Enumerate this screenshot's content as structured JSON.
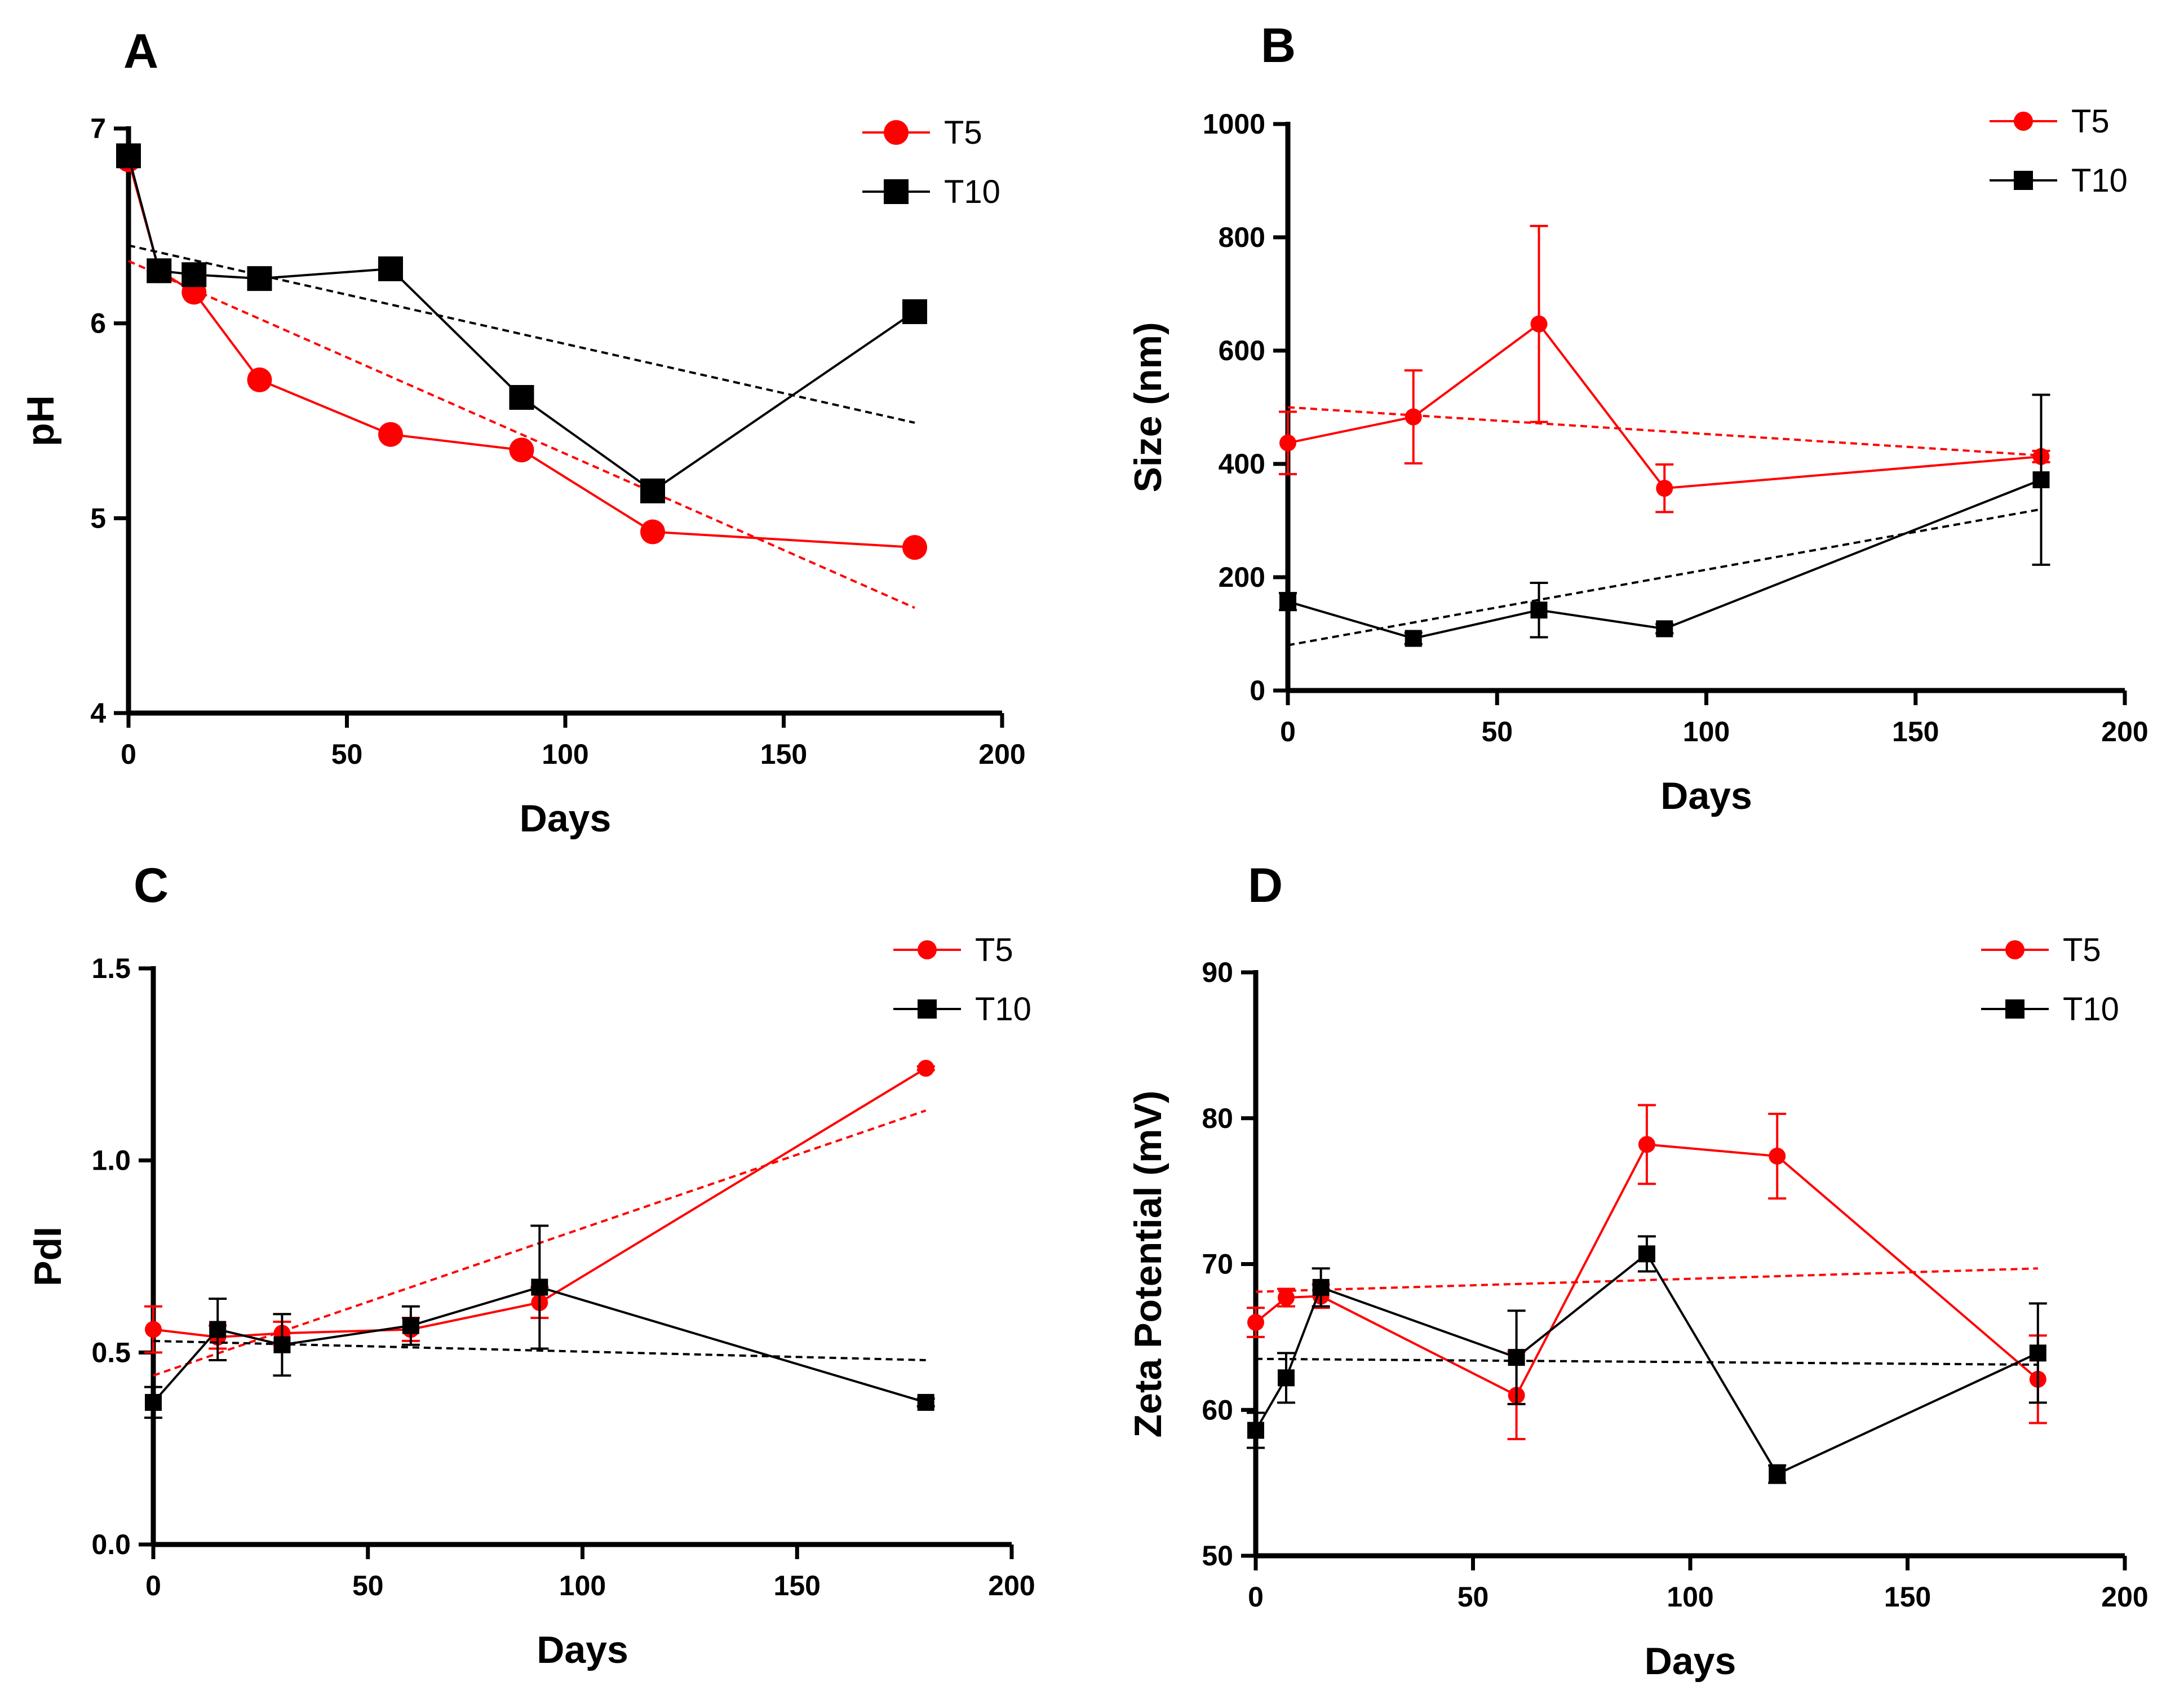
{
  "chart_data": [
    {
      "panel": "A",
      "type": "line",
      "title": "",
      "xlabel": "Days",
      "ylabel": "pH",
      "xlim": [
        0,
        200
      ],
      "ylim": [
        4,
        7
      ],
      "xticks": [
        0,
        50,
        100,
        150,
        200
      ],
      "yticks": [
        4,
        5,
        6,
        7
      ],
      "xtick_labels": [
        "0",
        "50",
        "100",
        "150",
        "200"
      ],
      "ytick_labels": [
        "4",
        "5",
        "6",
        "7"
      ],
      "marker_scale": "large",
      "legend_position": "top-right",
      "series": [
        {
          "name": "T5",
          "color": "#ff0000",
          "marker": "circle",
          "x": [
            0,
            7,
            15,
            30,
            60,
            90,
            120,
            180
          ],
          "y": [
            6.84,
            6.27,
            6.16,
            5.71,
            5.43,
            5.35,
            4.93,
            4.85
          ],
          "trend": [
            [
              0,
              6.32
            ],
            [
              180,
              4.54
            ]
          ]
        },
        {
          "name": "T10",
          "color": "#000000",
          "marker": "square",
          "x": [
            0,
            7,
            15,
            30,
            60,
            90,
            120,
            180
          ],
          "y": [
            6.86,
            6.27,
            6.25,
            6.23,
            6.28,
            5.62,
            5.14,
            6.06
          ],
          "trend": [
            [
              0,
              6.4
            ],
            [
              180,
              5.49
            ]
          ]
        }
      ]
    },
    {
      "panel": "B",
      "type": "line",
      "title": "",
      "xlabel": "Days",
      "ylabel": "Size (nm)",
      "xlim": [
        0,
        200
      ],
      "ylim": [
        0,
        1000
      ],
      "xticks": [
        0,
        50,
        100,
        150,
        200
      ],
      "yticks": [
        0,
        200,
        400,
        600,
        800,
        1000
      ],
      "xtick_labels": [
        "0",
        "50",
        "100",
        "150",
        "200"
      ],
      "ytick_labels": [
        "0",
        "200",
        "400",
        "600",
        "800",
        "1000"
      ],
      "marker_scale": "small",
      "legend_position": "top-right",
      "series": [
        {
          "name": "T5",
          "color": "#ff0000",
          "marker": "circle",
          "x": [
            0,
            30,
            60,
            90,
            180
          ],
          "y": [
            437,
            483,
            647,
            357,
            413
          ],
          "err": [
            55,
            82,
            173,
            42,
            10
          ],
          "trend": [
            [
              0,
              500
            ],
            [
              180,
              415
            ]
          ]
        },
        {
          "name": "T10",
          "color": "#000000",
          "marker": "square",
          "x": [
            0,
            30,
            60,
            90,
            180
          ],
          "y": [
            157,
            92,
            142,
            109,
            372
          ],
          "err": [
            15,
            10,
            48,
            8,
            150
          ],
          "trend": [
            [
              0,
              80
            ],
            [
              180,
              320
            ]
          ]
        }
      ]
    },
    {
      "panel": "C",
      "type": "line",
      "title": "",
      "xlabel": "Days",
      "ylabel": "PdI",
      "xlim": [
        0,
        200
      ],
      "ylim": [
        0.0,
        1.5
      ],
      "xticks": [
        0,
        50,
        100,
        150,
        200
      ],
      "yticks": [
        0.0,
        0.5,
        1.0,
        1.5
      ],
      "xtick_labels": [
        "0",
        "50",
        "100",
        "150",
        "200"
      ],
      "ytick_labels": [
        "0.0",
        "0.5",
        "1.0",
        "1.5"
      ],
      "marker_scale": "small",
      "legend_position": "top-right",
      "series": [
        {
          "name": "T5",
          "color": "#ff0000",
          "marker": "circle",
          "x": [
            0,
            15,
            30,
            60,
            90,
            180
          ],
          "y": [
            0.56,
            0.54,
            0.55,
            0.56,
            0.63,
            1.24
          ],
          "err": [
            0.06,
            0.03,
            0.03,
            0.03,
            0.04,
            0.005
          ],
          "trend": [
            [
              0,
              0.44
            ],
            [
              180,
              1.13
            ]
          ]
        },
        {
          "name": "T10",
          "color": "#000000",
          "marker": "square",
          "x": [
            0,
            15,
            30,
            60,
            90,
            180
          ],
          "y": [
            0.37,
            0.56,
            0.52,
            0.57,
            0.67,
            0.37
          ],
          "err": [
            0.04,
            0.08,
            0.08,
            0.05,
            0.16,
            0.01
          ],
          "trend": [
            [
              0,
              0.53
            ],
            [
              180,
              0.48
            ]
          ]
        }
      ]
    },
    {
      "panel": "D",
      "type": "line",
      "title": "",
      "xlabel": "Days",
      "ylabel": "Zeta Potential (mV)",
      "xlim": [
        0,
        200
      ],
      "ylim": [
        50,
        90
      ],
      "xticks": [
        0,
        50,
        100,
        150,
        200
      ],
      "yticks": [
        50,
        60,
        70,
        80,
        90
      ],
      "xtick_labels": [
        "0",
        "50",
        "100",
        "150",
        "200"
      ],
      "ytick_labels": [
        "50",
        "60",
        "70",
        "80",
        "90"
      ],
      "marker_scale": "small",
      "legend_position": "top-right",
      "series": [
        {
          "name": "T5",
          "color": "#ff0000",
          "marker": "circle",
          "x": [
            0,
            7,
            15,
            60,
            90,
            120,
            180
          ],
          "y": [
            66.0,
            67.7,
            67.8,
            61.0,
            78.2,
            77.4,
            62.1
          ],
          "err": [
            1.0,
            0.6,
            0.8,
            3.0,
            2.7,
            2.9,
            3.0
          ],
          "trend": [
            [
              0,
              68.1
            ],
            [
              180,
              69.7
            ]
          ]
        },
        {
          "name": "T10",
          "color": "#000000",
          "marker": "square",
          "x": [
            0,
            7,
            15,
            60,
            90,
            120,
            180
          ],
          "y": [
            58.6,
            62.2,
            68.4,
            63.6,
            70.7,
            55.6,
            63.9
          ],
          "err": [
            1.2,
            1.7,
            1.3,
            3.2,
            1.2,
            0.6,
            3.4
          ],
          "trend": [
            [
              0,
              63.5
            ],
            [
              180,
              63.1
            ]
          ]
        }
      ]
    }
  ]
}
